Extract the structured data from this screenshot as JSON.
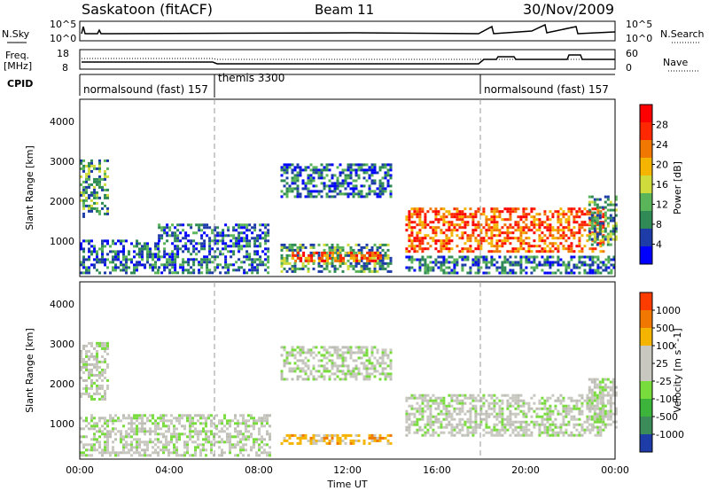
{
  "header": {
    "station": "Saskatoon (fitACF)",
    "beam": "Beam 11",
    "date": "30/Nov/2009"
  },
  "top_panels": {
    "nsky_label": "N.Sky",
    "nsky_ticks": [
      "10^5",
      "10^0"
    ],
    "nsearch_label": "N.Search",
    "nsearch_ticks": [
      "10^5",
      "10^0"
    ],
    "freq_label_1": "Freq.",
    "freq_label_2": "[MHz]",
    "freq_ticks": [
      "18",
      "8"
    ],
    "nave_label": "Nave",
    "nave_ticks": [
      "60",
      "0"
    ],
    "cpid_label": "CPID",
    "cpid_segments": [
      {
        "label": "normalsound (fast) 157",
        "start_hour": 0,
        "end_hour": 6
      },
      {
        "label": "themis 3300",
        "start_hour": 6,
        "end_hour": 18
      },
      {
        "label": "normalsound (fast) 157",
        "start_hour": 18,
        "end_hour": 24
      }
    ]
  },
  "chart_data": [
    {
      "type": "heatmap",
      "name": "power",
      "xlabel": "",
      "ylabel": "Slant Range [km]",
      "xlim": [
        0,
        24
      ],
      "ylim": [
        180,
        4600
      ],
      "y_ticks": [
        "1000",
        "2000",
        "3000",
        "4000"
      ],
      "colorbar_label": "Power [dB]",
      "colorbar_ticks": [
        "28",
        "24",
        "20",
        "16",
        "12",
        "8",
        "4"
      ],
      "colorbar_colors": [
        "#0000ff",
        "#1e3ca8",
        "#2f8a55",
        "#5ab45a",
        "#cfdc3c",
        "#f5b400",
        "#f07800",
        "#ff2800",
        "#ff0000"
      ],
      "regions": [
        {
          "start_hour": 0.0,
          "end_hour": 1.2,
          "range_min": 1700,
          "range_max": 3100,
          "level": "mid"
        },
        {
          "start_hour": 0.0,
          "end_hour": 3.5,
          "range_min": 300,
          "range_max": 1100,
          "level": "low"
        },
        {
          "start_hour": 3.5,
          "end_hour": 8.5,
          "range_min": 300,
          "range_max": 1500,
          "level": "low"
        },
        {
          "start_hour": 9.0,
          "end_hour": 14.0,
          "range_min": 300,
          "range_max": 1000,
          "level": "mid"
        },
        {
          "start_hour": 9.5,
          "end_hour": 13.5,
          "range_min": 550,
          "range_max": 800,
          "level": "high"
        },
        {
          "start_hour": 9.0,
          "end_hour": 14.0,
          "range_min": 2200,
          "range_max": 3000,
          "level": "low"
        },
        {
          "start_hour": 14.6,
          "end_hour": 23.5,
          "range_min": 800,
          "range_max": 1900,
          "level": "high"
        },
        {
          "start_hour": 14.6,
          "end_hour": 24.0,
          "range_min": 250,
          "range_max": 700,
          "level": "low"
        },
        {
          "start_hour": 22.8,
          "end_hour": 24.0,
          "range_min": 1000,
          "range_max": 2200,
          "level": "mid"
        }
      ]
    },
    {
      "type": "heatmap",
      "name": "velocity",
      "xlabel": "Time UT",
      "ylabel": "Slant Range [km]",
      "xlim": [
        0,
        24
      ],
      "ylim": [
        180,
        4600
      ],
      "x_ticks": [
        "00:00",
        "04:00",
        "08:00",
        "12:00",
        "16:00",
        "20:00",
        "00:00"
      ],
      "y_ticks": [
        "1000",
        "2000",
        "3000",
        "4000"
      ],
      "colorbar_label": "Velocity [m s^-1]",
      "colorbar_ticks": [
        "1000",
        "500",
        "100",
        "25",
        "-25",
        "-100",
        "-500",
        "-1000"
      ],
      "colorbar_colors": [
        "#1e3ca8",
        "#3c8c5a",
        "#3cb43c",
        "#78dc3c",
        "#c8c8c0",
        "#c8c8c0",
        "#f5b400",
        "#f07800",
        "#ff3c00"
      ],
      "regions": [
        {
          "start_hour": 0.0,
          "end_hour": 1.2,
          "range_min": 1700,
          "range_max": 3100,
          "level": "grey"
        },
        {
          "start_hour": 0.0,
          "end_hour": 8.5,
          "range_min": 300,
          "range_max": 1300,
          "level": "grey"
        },
        {
          "start_hour": 9.0,
          "end_hour": 14.0,
          "range_min": 550,
          "range_max": 800,
          "level": "orange"
        },
        {
          "start_hour": 9.0,
          "end_hour": 14.0,
          "range_min": 2200,
          "range_max": 3000,
          "level": "grey"
        },
        {
          "start_hour": 14.6,
          "end_hour": 23.5,
          "range_min": 800,
          "range_max": 1800,
          "level": "grey"
        },
        {
          "start_hour": 22.8,
          "end_hour": 24.0,
          "range_min": 1000,
          "range_max": 2200,
          "level": "grey"
        }
      ]
    }
  ]
}
